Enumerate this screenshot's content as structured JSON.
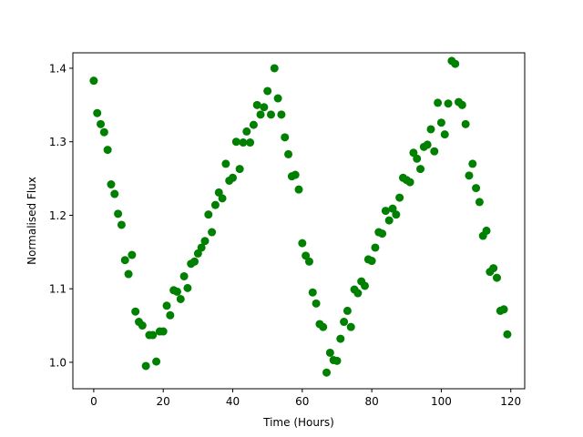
{
  "chart_data": {
    "type": "scatter",
    "title": "",
    "xlabel": "Time (Hours)",
    "ylabel": "Normalised Flux",
    "xlim": [
      -6,
      124
    ],
    "ylim": [
      0.964,
      1.421
    ],
    "xticks": [
      0,
      20,
      40,
      60,
      80,
      100,
      120
    ],
    "xtick_labels": [
      "0",
      "20",
      "40",
      "60",
      "80",
      "100",
      "120"
    ],
    "yticks": [
      1.0,
      1.1,
      1.2,
      1.3,
      1.4
    ],
    "ytick_labels": [
      "1.0",
      "1.1",
      "1.2",
      "1.3",
      "1.4"
    ],
    "grid": false,
    "legend": "none",
    "colors": {
      "marker": "#008000",
      "axes": "#000000",
      "background": "#ffffff"
    },
    "series": [
      {
        "x": [
          0,
          1,
          2,
          3,
          4,
          5,
          6,
          7,
          8,
          9,
          10,
          11,
          12,
          13,
          14,
          15,
          16,
          17,
          18,
          19,
          20,
          21,
          22,
          23,
          24,
          25,
          26,
          27,
          28,
          29,
          30,
          31,
          32,
          33,
          34,
          35,
          36,
          37,
          38,
          39,
          40,
          41,
          42,
          43,
          44,
          45,
          46,
          47,
          48,
          49,
          50,
          51,
          52,
          53,
          54,
          55,
          56,
          57,
          58,
          59,
          60,
          61,
          62,
          63,
          64,
          65,
          66,
          67,
          68,
          69,
          70,
          71,
          72,
          73,
          74,
          75,
          76,
          77,
          78,
          79,
          80,
          81,
          82,
          83,
          84,
          85,
          86,
          87,
          88,
          89,
          90,
          91,
          92,
          93,
          94,
          95,
          96,
          97,
          98,
          99,
          100,
          101,
          102,
          103,
          104,
          105,
          106,
          107,
          108,
          109,
          110,
          111,
          112,
          113,
          114,
          115,
          116,
          117,
          118,
          119
        ],
        "y": [
          1.383,
          1.339,
          1.324,
          1.313,
          1.289,
          1.242,
          1.229,
          1.202,
          1.187,
          1.139,
          1.12,
          1.146,
          1.069,
          1.055,
          1.05,
          0.995,
          1.037,
          1.037,
          1.001,
          1.042,
          1.042,
          1.077,
          1.064,
          1.098,
          1.096,
          1.086,
          1.117,
          1.101,
          1.134,
          1.137,
          1.148,
          1.156,
          1.165,
          1.201,
          1.177,
          1.214,
          1.231,
          1.223,
          1.27,
          1.247,
          1.251,
          1.3,
          1.263,
          1.299,
          1.314,
          1.299,
          1.323,
          1.35,
          1.337,
          1.347,
          1.369,
          1.337,
          1.4,
          1.359,
          1.337,
          1.306,
          1.283,
          1.253,
          1.255,
          1.235,
          1.162,
          1.145,
          1.137,
          1.095,
          1.08,
          1.052,
          1.048,
          0.986,
          1.013,
          1.003,
          1.002,
          1.032,
          1.055,
          1.07,
          1.048,
          1.099,
          1.094,
          1.11,
          1.104,
          1.14,
          1.138,
          1.156,
          1.177,
          1.175,
          1.206,
          1.193,
          1.209,
          1.201,
          1.224,
          1.251,
          1.248,
          1.245,
          1.285,
          1.277,
          1.263,
          1.293,
          1.296,
          1.317,
          1.287,
          1.353,
          1.326,
          1.31,
          1.352,
          1.41,
          1.406,
          1.354,
          1.35,
          1.324,
          1.254,
          1.27,
          1.237,
          1.218,
          1.172,
          1.179,
          1.123,
          1.128,
          1.115,
          1.07,
          1.072,
          1.038
        ]
      }
    ]
  }
}
